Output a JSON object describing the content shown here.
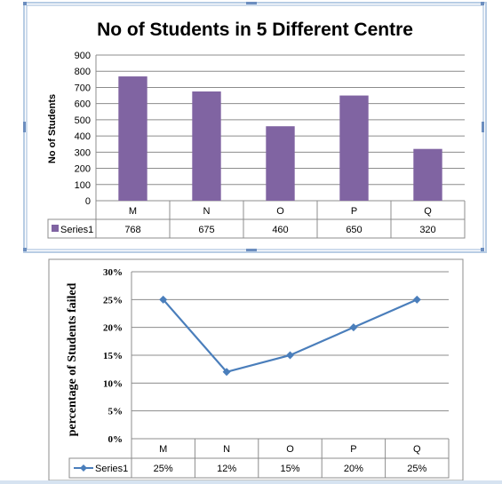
{
  "chart_data": [
    {
      "type": "bar",
      "title": "No of Students in 5 Different Centre",
      "ylabel": "No of Students",
      "xlabel": "",
      "categories": [
        "M",
        "N",
        "O",
        "P",
        "Q"
      ],
      "series": [
        {
          "name": "Series1",
          "values": [
            768,
            675,
            460,
            650,
            320
          ],
          "labels": [
            "768",
            "675",
            "460",
            "650",
            "320"
          ]
        }
      ],
      "ylim": [
        0,
        900
      ],
      "ytick_step": 100,
      "yticks": [
        "0",
        "100",
        "200",
        "300",
        "400",
        "500",
        "600",
        "700",
        "800",
        "900"
      ],
      "grid": true,
      "legend": "data-table",
      "colors": {
        "bar": "#8064A2"
      }
    },
    {
      "type": "line",
      "title": "",
      "ylabel": "percentage of Students  failed",
      "xlabel": "",
      "categories": [
        "M",
        "N",
        "O",
        "P",
        "Q"
      ],
      "series": [
        {
          "name": "Series1",
          "values": [
            25,
            12,
            15,
            20,
            25
          ],
          "labels": [
            "25%",
            "12%",
            "15%",
            "20%",
            "25%"
          ]
        }
      ],
      "ylim": [
        0,
        30
      ],
      "ytick_step": 5,
      "yticks": [
        "0%",
        "5%",
        "10%",
        "15%",
        "20%",
        "25%",
        "30%"
      ],
      "grid": true,
      "legend": "data-table",
      "colors": {
        "line": "#4A7EBB",
        "marker": "#4A7EBB"
      }
    }
  ]
}
